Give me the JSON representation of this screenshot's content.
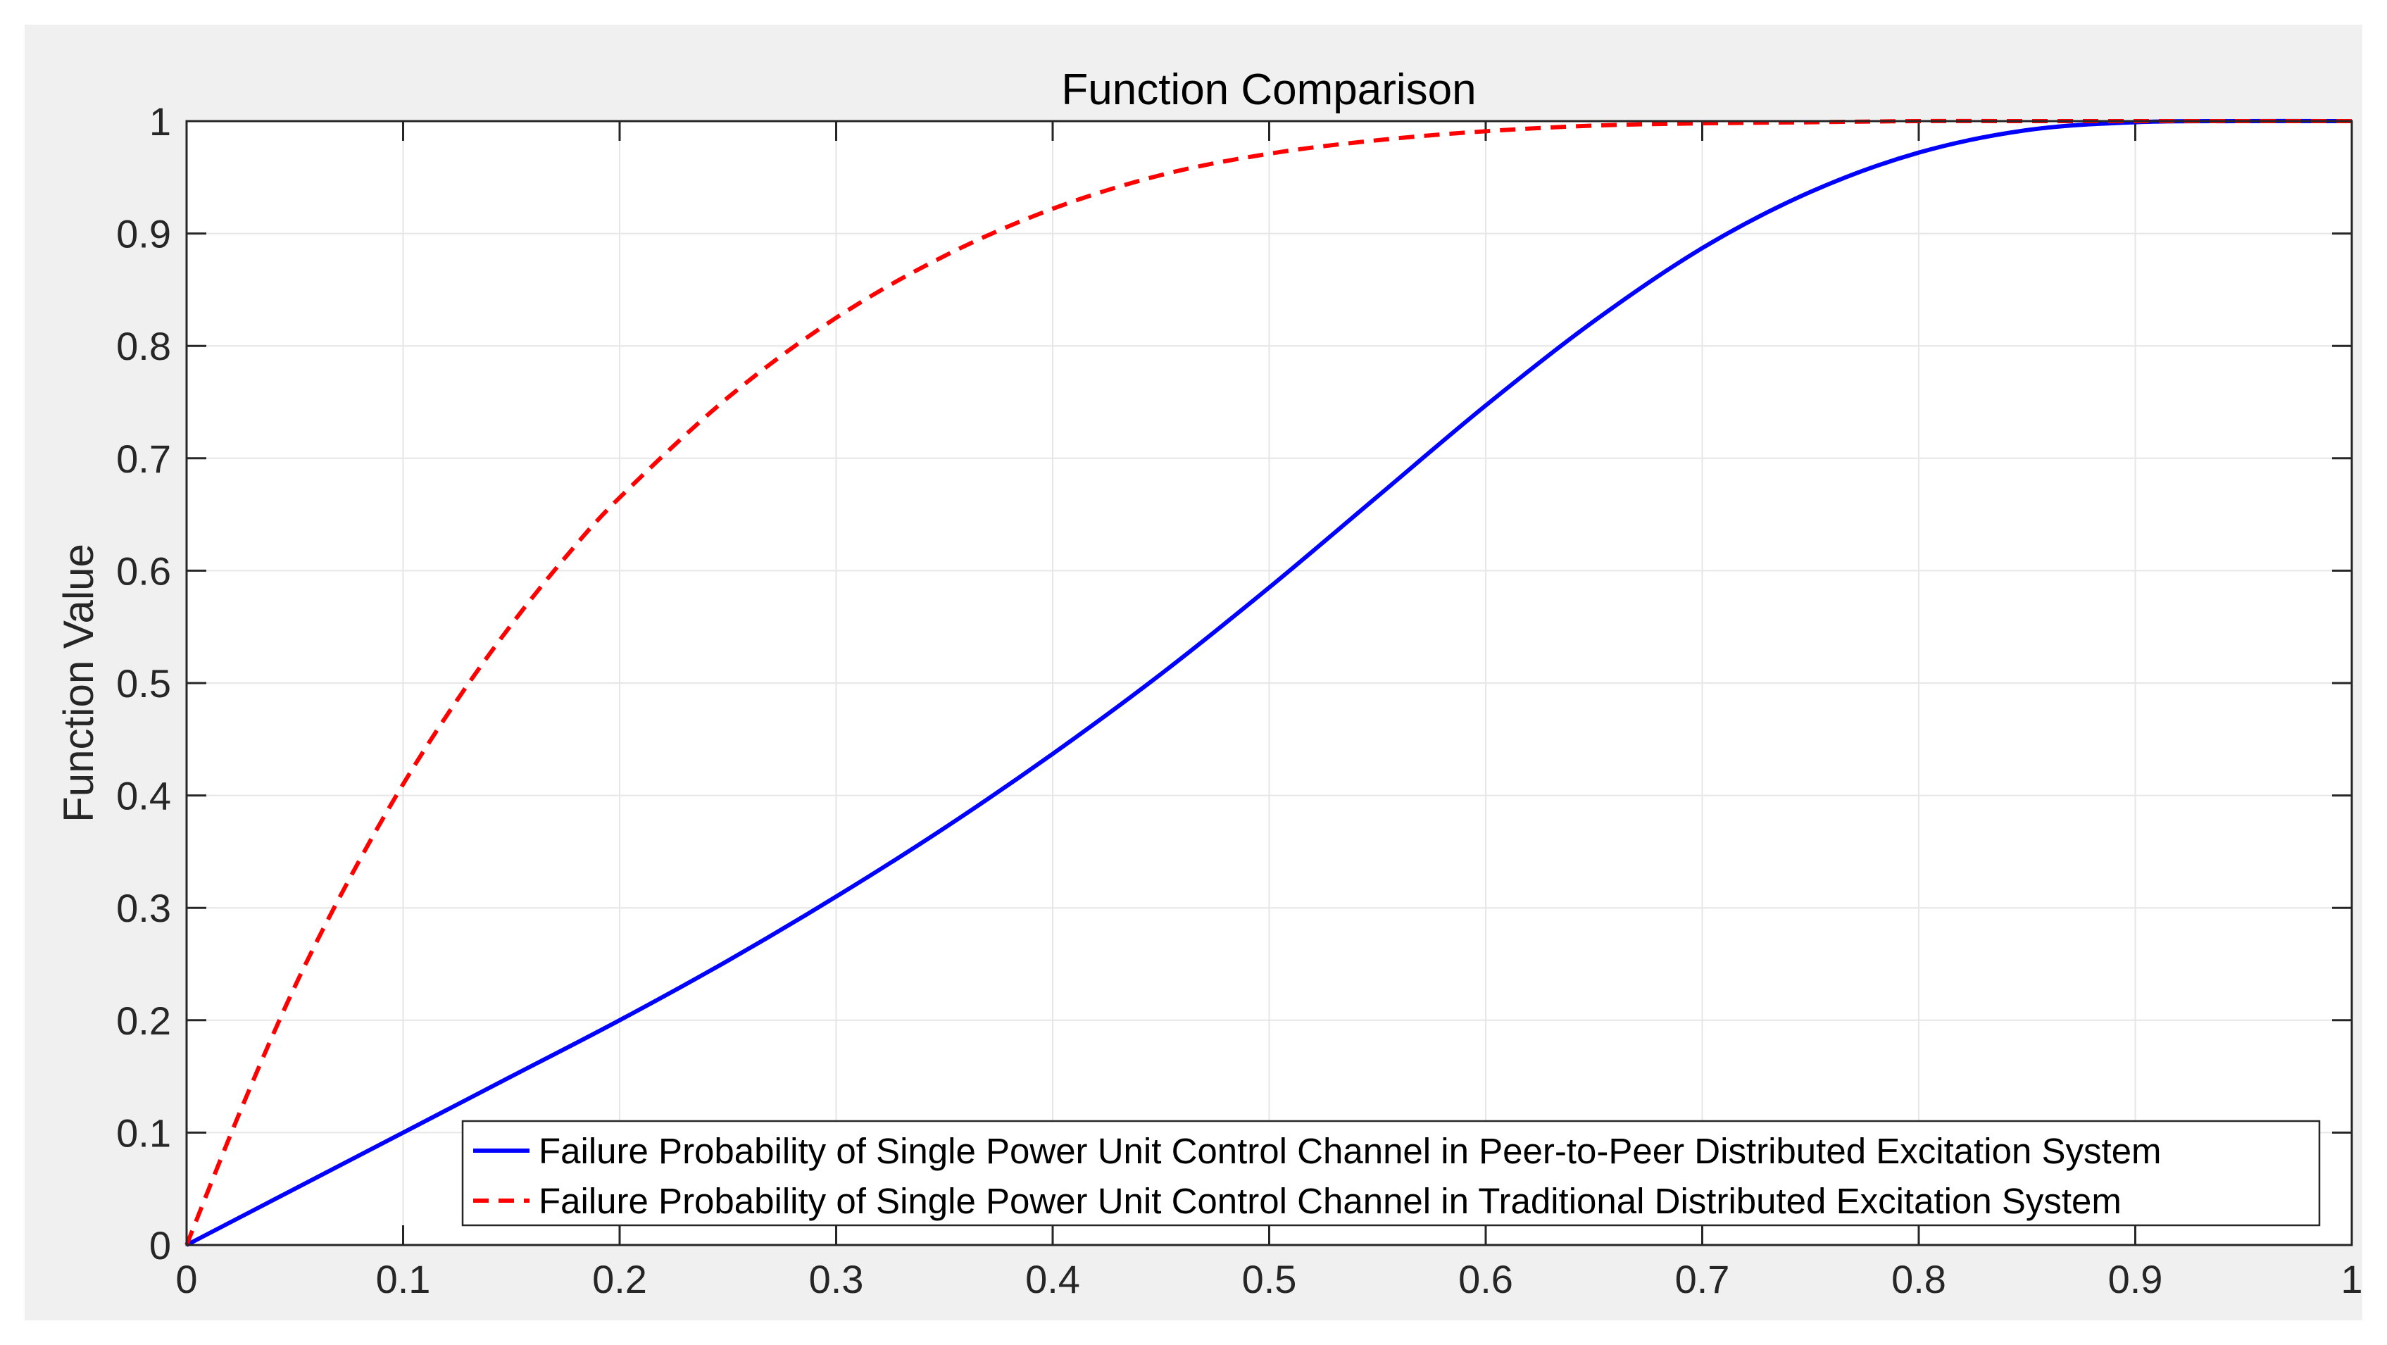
{
  "chart_data": {
    "type": "line",
    "title": "Function Comparison",
    "xlabel": "",
    "ylabel": "Function Value",
    "xlim": [
      0,
      1
    ],
    "ylim": [
      0,
      1
    ],
    "grid": true,
    "legend_position": "bottom-right",
    "x_ticks": [
      "0",
      "0.1",
      "0.2",
      "0.3",
      "0.4",
      "0.5",
      "0.6",
      "0.7",
      "0.8",
      "0.9",
      "1"
    ],
    "y_ticks": [
      "0",
      "0.1",
      "0.2",
      "0.3",
      "0.4",
      "0.5",
      "0.6",
      "0.7",
      "0.8",
      "0.9",
      "1"
    ],
    "series": [
      {
        "name": "Failure Probability of Single Power Unit Control Channel in Peer-to-Peer Distributed Excitation System",
        "color": "#0000ff",
        "line_style": "solid",
        "x": [
          0,
          0.05,
          0.1,
          0.15,
          0.2,
          0.25,
          0.3,
          0.35,
          0.4,
          0.45,
          0.5,
          0.55,
          0.6,
          0.65,
          0.7,
          0.75,
          0.8,
          0.85,
          0.9,
          0.95,
          1.0
        ],
        "y": [
          0,
          0.05,
          0.1,
          0.15,
          0.2,
          0.253,
          0.31,
          0.371,
          0.437,
          0.508,
          0.585,
          0.666,
          0.747,
          0.822,
          0.887,
          0.937,
          0.972,
          0.992,
          0.999,
          1.0,
          1.0
        ]
      },
      {
        "name": "Failure Probability of Single Power Unit Control Channel in Traditional Distributed Excitation System",
        "color": "#ff0000",
        "line_style": "dashed",
        "x": [
          0,
          0.025,
          0.05,
          0.075,
          0.1,
          0.125,
          0.15,
          0.175,
          0.2,
          0.25,
          0.3,
          0.35,
          0.4,
          0.45,
          0.5,
          0.55,
          0.6,
          0.65,
          0.7,
          0.75,
          0.8,
          0.85,
          0.9,
          0.95,
          1.0
        ],
        "y": [
          0,
          0.12,
          0.23,
          0.325,
          0.41,
          0.485,
          0.552,
          0.612,
          0.665,
          0.754,
          0.825,
          0.88,
          0.922,
          0.952,
          0.971,
          0.983,
          0.991,
          0.996,
          0.998,
          0.999,
          1.0,
          1.0,
          1.0,
          1.0,
          1.0
        ]
      }
    ]
  }
}
